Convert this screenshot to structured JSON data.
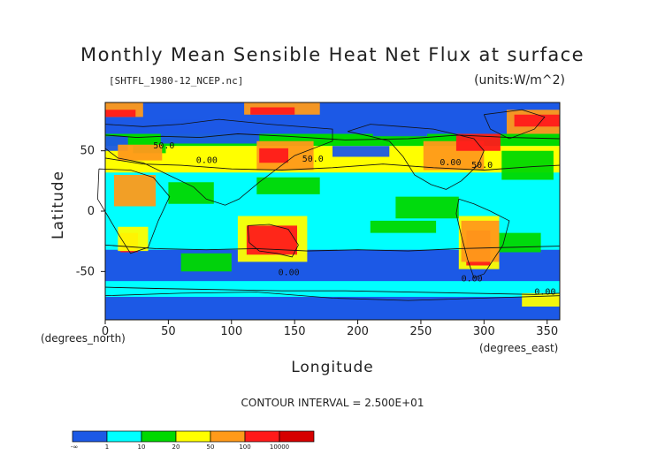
{
  "title": "Monthly Mean Sensible Heat Net Flux at surface",
  "subtitle": "[SHTFL_1980-12_NCEP.nc]",
  "units": "(units:W/m^2)",
  "contour_interval": "CONTOUR INTERVAL = 2.500E+01",
  "map": {
    "x_axis": {
      "title": "Longitude",
      "unit_label": "(degrees_east)",
      "ticks": [
        "0",
        "50",
        "100",
        "150",
        "200",
        "250",
        "300",
        "350"
      ]
    },
    "y_axis": {
      "title": "Latitude",
      "unit_label": "(degrees_north)",
      "ticks": [
        "50",
        "0",
        "-50"
      ]
    },
    "contour_labels": [
      "50.0",
      "0.00",
      "50.0",
      "0.00",
      "50.0",
      "0.00",
      "0.00",
      "0.00"
    ]
  },
  "legend": {
    "start_label": "-∞",
    "levels": [
      "1",
      "10",
      "20",
      "50",
      "100",
      "10000"
    ],
    "colors": [
      "#1c59e6",
      "#00ffff",
      "#00d900",
      "#ffff00",
      "#ff9a1a",
      "#ff1a1a",
      "#d60000"
    ]
  },
  "chart_data": {
    "type": "heatmap",
    "title": "Monthly Mean Sensible Heat Net Flux at surface",
    "subtitle": "[SHTFL_1980-12_NCEP.nc]",
    "units": "W/m^2",
    "xlabel": "Longitude",
    "ylabel": "Latitude",
    "xlim": [
      0,
      360
    ],
    "ylim": [
      -90,
      90
    ],
    "contour_interval": 25,
    "levels": [
      1,
      10,
      20,
      50,
      100,
      10000
    ],
    "colors": [
      "#1c59e6",
      "#00ffff",
      "#00d900",
      "#ffff00",
      "#ff9a1a",
      "#ff1a1a",
      "#d60000"
    ]
  }
}
